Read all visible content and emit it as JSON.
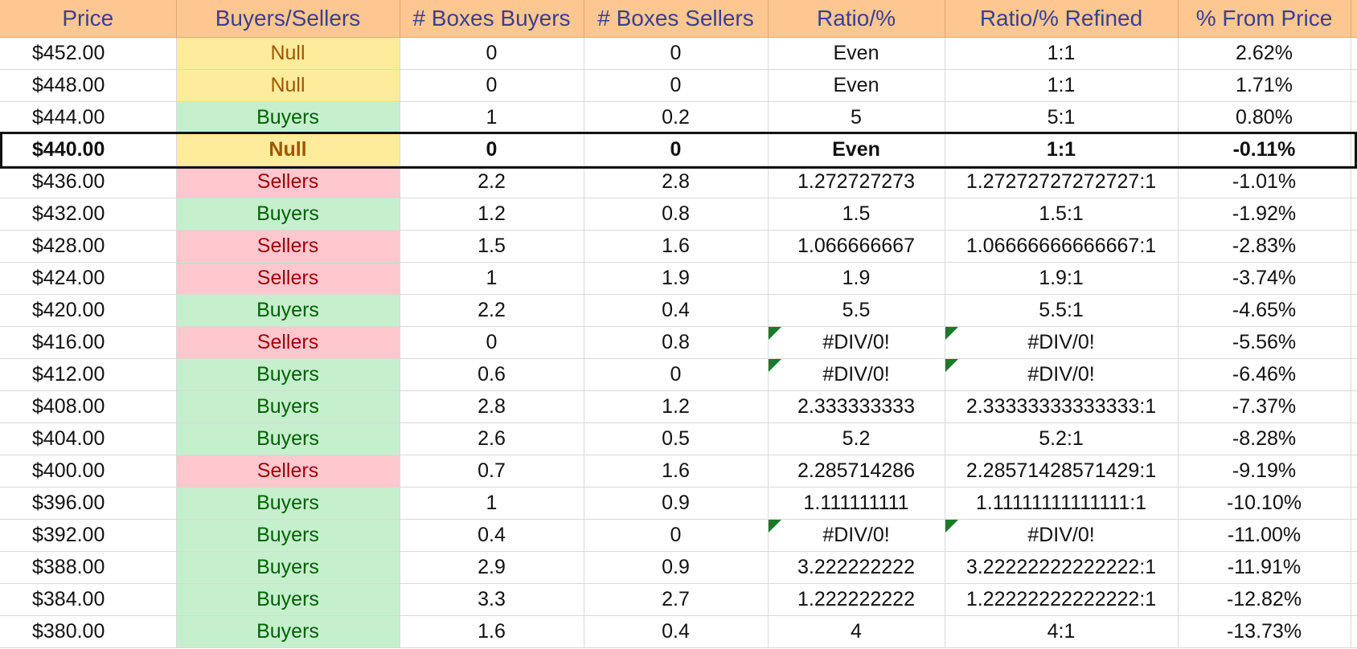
{
  "headers": [
    "Price",
    "Buyers/Sellers",
    "# Boxes Buyers",
    "# Boxes Sellers",
    "Ratio/%",
    "Ratio/% Refined",
    "% From Price"
  ],
  "colors": {
    "header_bg": "#fcc791",
    "header_text": "#3c3f8f",
    "null_bg": "#ffeb9c",
    "buyers_bg": "#c6efce",
    "sellers_bg": "#ffc7ce",
    "error_marker": "#1a7a2a"
  },
  "current_price_row": 3,
  "rows": [
    {
      "price": "$452.00",
      "side": "Null",
      "boxes_buyers": "0",
      "boxes_sellers": "0",
      "ratio": "Even",
      "ratio_refined": "1:1",
      "from_price": "2.62%"
    },
    {
      "price": "$448.00",
      "side": "Null",
      "boxes_buyers": "0",
      "boxes_sellers": "0",
      "ratio": "Even",
      "ratio_refined": "1:1",
      "from_price": "1.71%"
    },
    {
      "price": "$444.00",
      "side": "Buyers",
      "boxes_buyers": "1",
      "boxes_sellers": "0.2",
      "ratio": "5",
      "ratio_refined": "5:1",
      "from_price": "0.80%"
    },
    {
      "price": "$440.00",
      "side": "Null",
      "boxes_buyers": "0",
      "boxes_sellers": "0",
      "ratio": "Even",
      "ratio_refined": "1:1",
      "from_price": "-0.11%"
    },
    {
      "price": "$436.00",
      "side": "Sellers",
      "boxes_buyers": "2.2",
      "boxes_sellers": "2.8",
      "ratio": "1.272727273",
      "ratio_refined": "1.27272727272727:1",
      "from_price": "-1.01%"
    },
    {
      "price": "$432.00",
      "side": "Buyers",
      "boxes_buyers": "1.2",
      "boxes_sellers": "0.8",
      "ratio": "1.5",
      "ratio_refined": "1.5:1",
      "from_price": "-1.92%"
    },
    {
      "price": "$428.00",
      "side": "Sellers",
      "boxes_buyers": "1.5",
      "boxes_sellers": "1.6",
      "ratio": "1.066666667",
      "ratio_refined": "1.06666666666667:1",
      "from_price": "-2.83%"
    },
    {
      "price": "$424.00",
      "side": "Sellers",
      "boxes_buyers": "1",
      "boxes_sellers": "1.9",
      "ratio": "1.9",
      "ratio_refined": "1.9:1",
      "from_price": "-3.74%"
    },
    {
      "price": "$420.00",
      "side": "Buyers",
      "boxes_buyers": "2.2",
      "boxes_sellers": "0.4",
      "ratio": "5.5",
      "ratio_refined": "5.5:1",
      "from_price": "-4.65%"
    },
    {
      "price": "$416.00",
      "side": "Sellers",
      "boxes_buyers": "0",
      "boxes_sellers": "0.8",
      "ratio": "#DIV/0!",
      "ratio_refined": "#DIV/0!",
      "from_price": "-5.56%"
    },
    {
      "price": "$412.00",
      "side": "Buyers",
      "boxes_buyers": "0.6",
      "boxes_sellers": "0",
      "ratio": "#DIV/0!",
      "ratio_refined": "#DIV/0!",
      "from_price": "-6.46%"
    },
    {
      "price": "$408.00",
      "side": "Buyers",
      "boxes_buyers": "2.8",
      "boxes_sellers": "1.2",
      "ratio": "2.333333333",
      "ratio_refined": "2.33333333333333:1",
      "from_price": "-7.37%"
    },
    {
      "price": "$404.00",
      "side": "Buyers",
      "boxes_buyers": "2.6",
      "boxes_sellers": "0.5",
      "ratio": "5.2",
      "ratio_refined": "5.2:1",
      "from_price": "-8.28%"
    },
    {
      "price": "$400.00",
      "side": "Sellers",
      "boxes_buyers": "0.7",
      "boxes_sellers": "1.6",
      "ratio": "2.285714286",
      "ratio_refined": "2.28571428571429:1",
      "from_price": "-9.19%"
    },
    {
      "price": "$396.00",
      "side": "Buyers",
      "boxes_buyers": "1",
      "boxes_sellers": "0.9",
      "ratio": "1.111111111",
      "ratio_refined": "1.11111111111111:1",
      "from_price": "-10.10%"
    },
    {
      "price": "$392.00",
      "side": "Buyers",
      "boxes_buyers": "0.4",
      "boxes_sellers": "0",
      "ratio": "#DIV/0!",
      "ratio_refined": "#DIV/0!",
      "from_price": "-11.00%"
    },
    {
      "price": "$388.00",
      "side": "Buyers",
      "boxes_buyers": "2.9",
      "boxes_sellers": "0.9",
      "ratio": "3.222222222",
      "ratio_refined": "3.22222222222222:1",
      "from_price": "-11.91%"
    },
    {
      "price": "$384.00",
      "side": "Buyers",
      "boxes_buyers": "3.3",
      "boxes_sellers": "2.7",
      "ratio": "1.222222222",
      "ratio_refined": "1.22222222222222:1",
      "from_price": "-12.82%"
    },
    {
      "price": "$380.00",
      "side": "Buyers",
      "boxes_buyers": "1.6",
      "boxes_sellers": "0.4",
      "ratio": "4",
      "ratio_refined": "4:1",
      "from_price": "-13.73%"
    }
  ]
}
